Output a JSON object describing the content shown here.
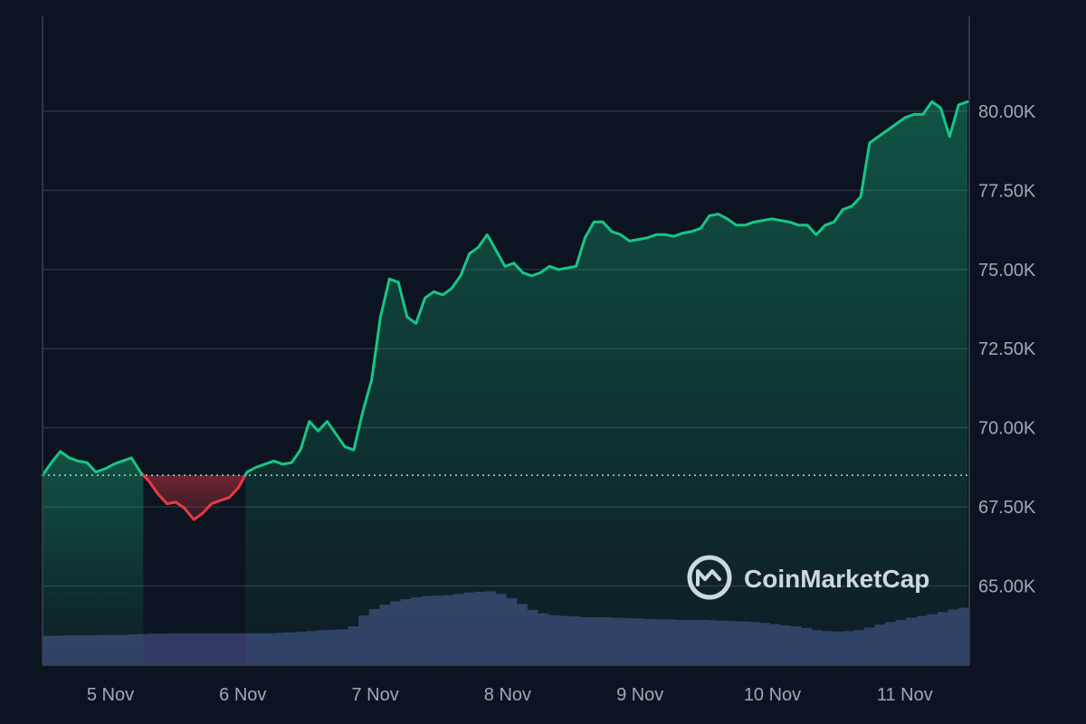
{
  "chart_data": {
    "type": "area",
    "title": "",
    "xlabel": "",
    "ylabel": "",
    "x_tick_labels": [
      "5 Nov",
      "6 Nov",
      "7 Nov",
      "8 Nov",
      "9 Nov",
      "10 Nov",
      "11 Nov"
    ],
    "y_tick_labels": [
      "65.00K",
      "67.50K",
      "70.00K",
      "72.50K",
      "75.00K",
      "77.50K",
      "80.00K"
    ],
    "y_ticks": [
      65000,
      67500,
      70000,
      72500,
      75000,
      77500,
      80000
    ],
    "ylim": [
      62500,
      83000
    ],
    "baseline": 68500,
    "grid": true,
    "series": [
      {
        "values": [
          68500,
          68900,
          69250,
          69050,
          68950,
          68900,
          68600,
          68700,
          68850,
          68950,
          69050,
          68600,
          68300,
          67900,
          67600,
          67650,
          67450,
          67100,
          67300,
          67600,
          67700,
          67800,
          68100,
          68600,
          68750,
          68850,
          68950,
          68850,
          68900,
          69300,
          70200,
          69900,
          70200,
          69800,
          69400,
          69300,
          70500,
          71500,
          73500,
          74700,
          74600,
          73500,
          73300,
          74100,
          74300,
          74200,
          74400,
          74800,
          75500,
          75700,
          76100,
          75600,
          75100,
          75200,
          74900,
          74800,
          74900,
          75100,
          75000,
          75050,
          75100,
          76000,
          76500,
          76500,
          76200,
          76100,
          75900,
          75950,
          76000,
          76100,
          76100,
          76050,
          76150,
          76200,
          76300,
          76700,
          76750,
          76600,
          76400,
          76400,
          76500,
          76550,
          76600,
          76550,
          76500,
          76400,
          76400,
          76100,
          76400,
          76500,
          76900,
          77000,
          77300,
          79000,
          79200,
          79400,
          79600,
          79800,
          79900,
          79900,
          80300,
          80100,
          79200,
          80200,
          80300
        ],
        "color_up": "#16c784",
        "color_down": "#ea3943"
      }
    ],
    "volume": {
      "values": [
        6.8,
        6.8,
        6.9,
        6.9,
        6.9,
        7.0,
        7.0,
        7.0,
        7.1,
        7.2,
        7.3,
        7.3,
        7.4,
        7.4,
        7.4,
        7.4,
        7.4,
        7.4,
        7.4,
        7.4,
        7.4,
        7.4,
        7.5,
        7.6,
        7.7,
        7.9,
        8.1,
        8.2,
        8.3,
        9.0,
        11.5,
        13.0,
        14.0,
        14.8,
        15.3,
        15.7,
        16.0,
        16.1,
        16.2,
        16.5,
        16.8,
        17.0,
        17.1,
        16.5,
        15.5,
        14.2,
        12.8,
        12.0,
        11.6,
        11.4,
        11.3,
        11.1,
        11.1,
        11.1,
        11.0,
        10.9,
        10.8,
        10.7,
        10.6,
        10.6,
        10.5,
        10.5,
        10.5,
        10.4,
        10.3,
        10.2,
        10.1,
        10.0,
        9.8,
        9.5,
        9.2,
        9.0,
        8.6,
        8.1,
        7.9,
        7.8,
        7.9,
        8.1,
        8.7,
        9.4,
        10.0,
        10.5,
        11.0,
        11.4,
        11.8,
        12.3,
        12.9,
        13.3
      ],
      "color": "#323a64"
    },
    "colors": {
      "background": "#0d1421",
      "grid": "#2a3140",
      "axis": "#3b4350",
      "tick_text": "#a1a7bb",
      "baseline_dots": "#c4cbd8"
    }
  },
  "brand": {
    "name": "CoinMarketCap",
    "logo_icon": "coinmarketcap-logo-icon"
  }
}
